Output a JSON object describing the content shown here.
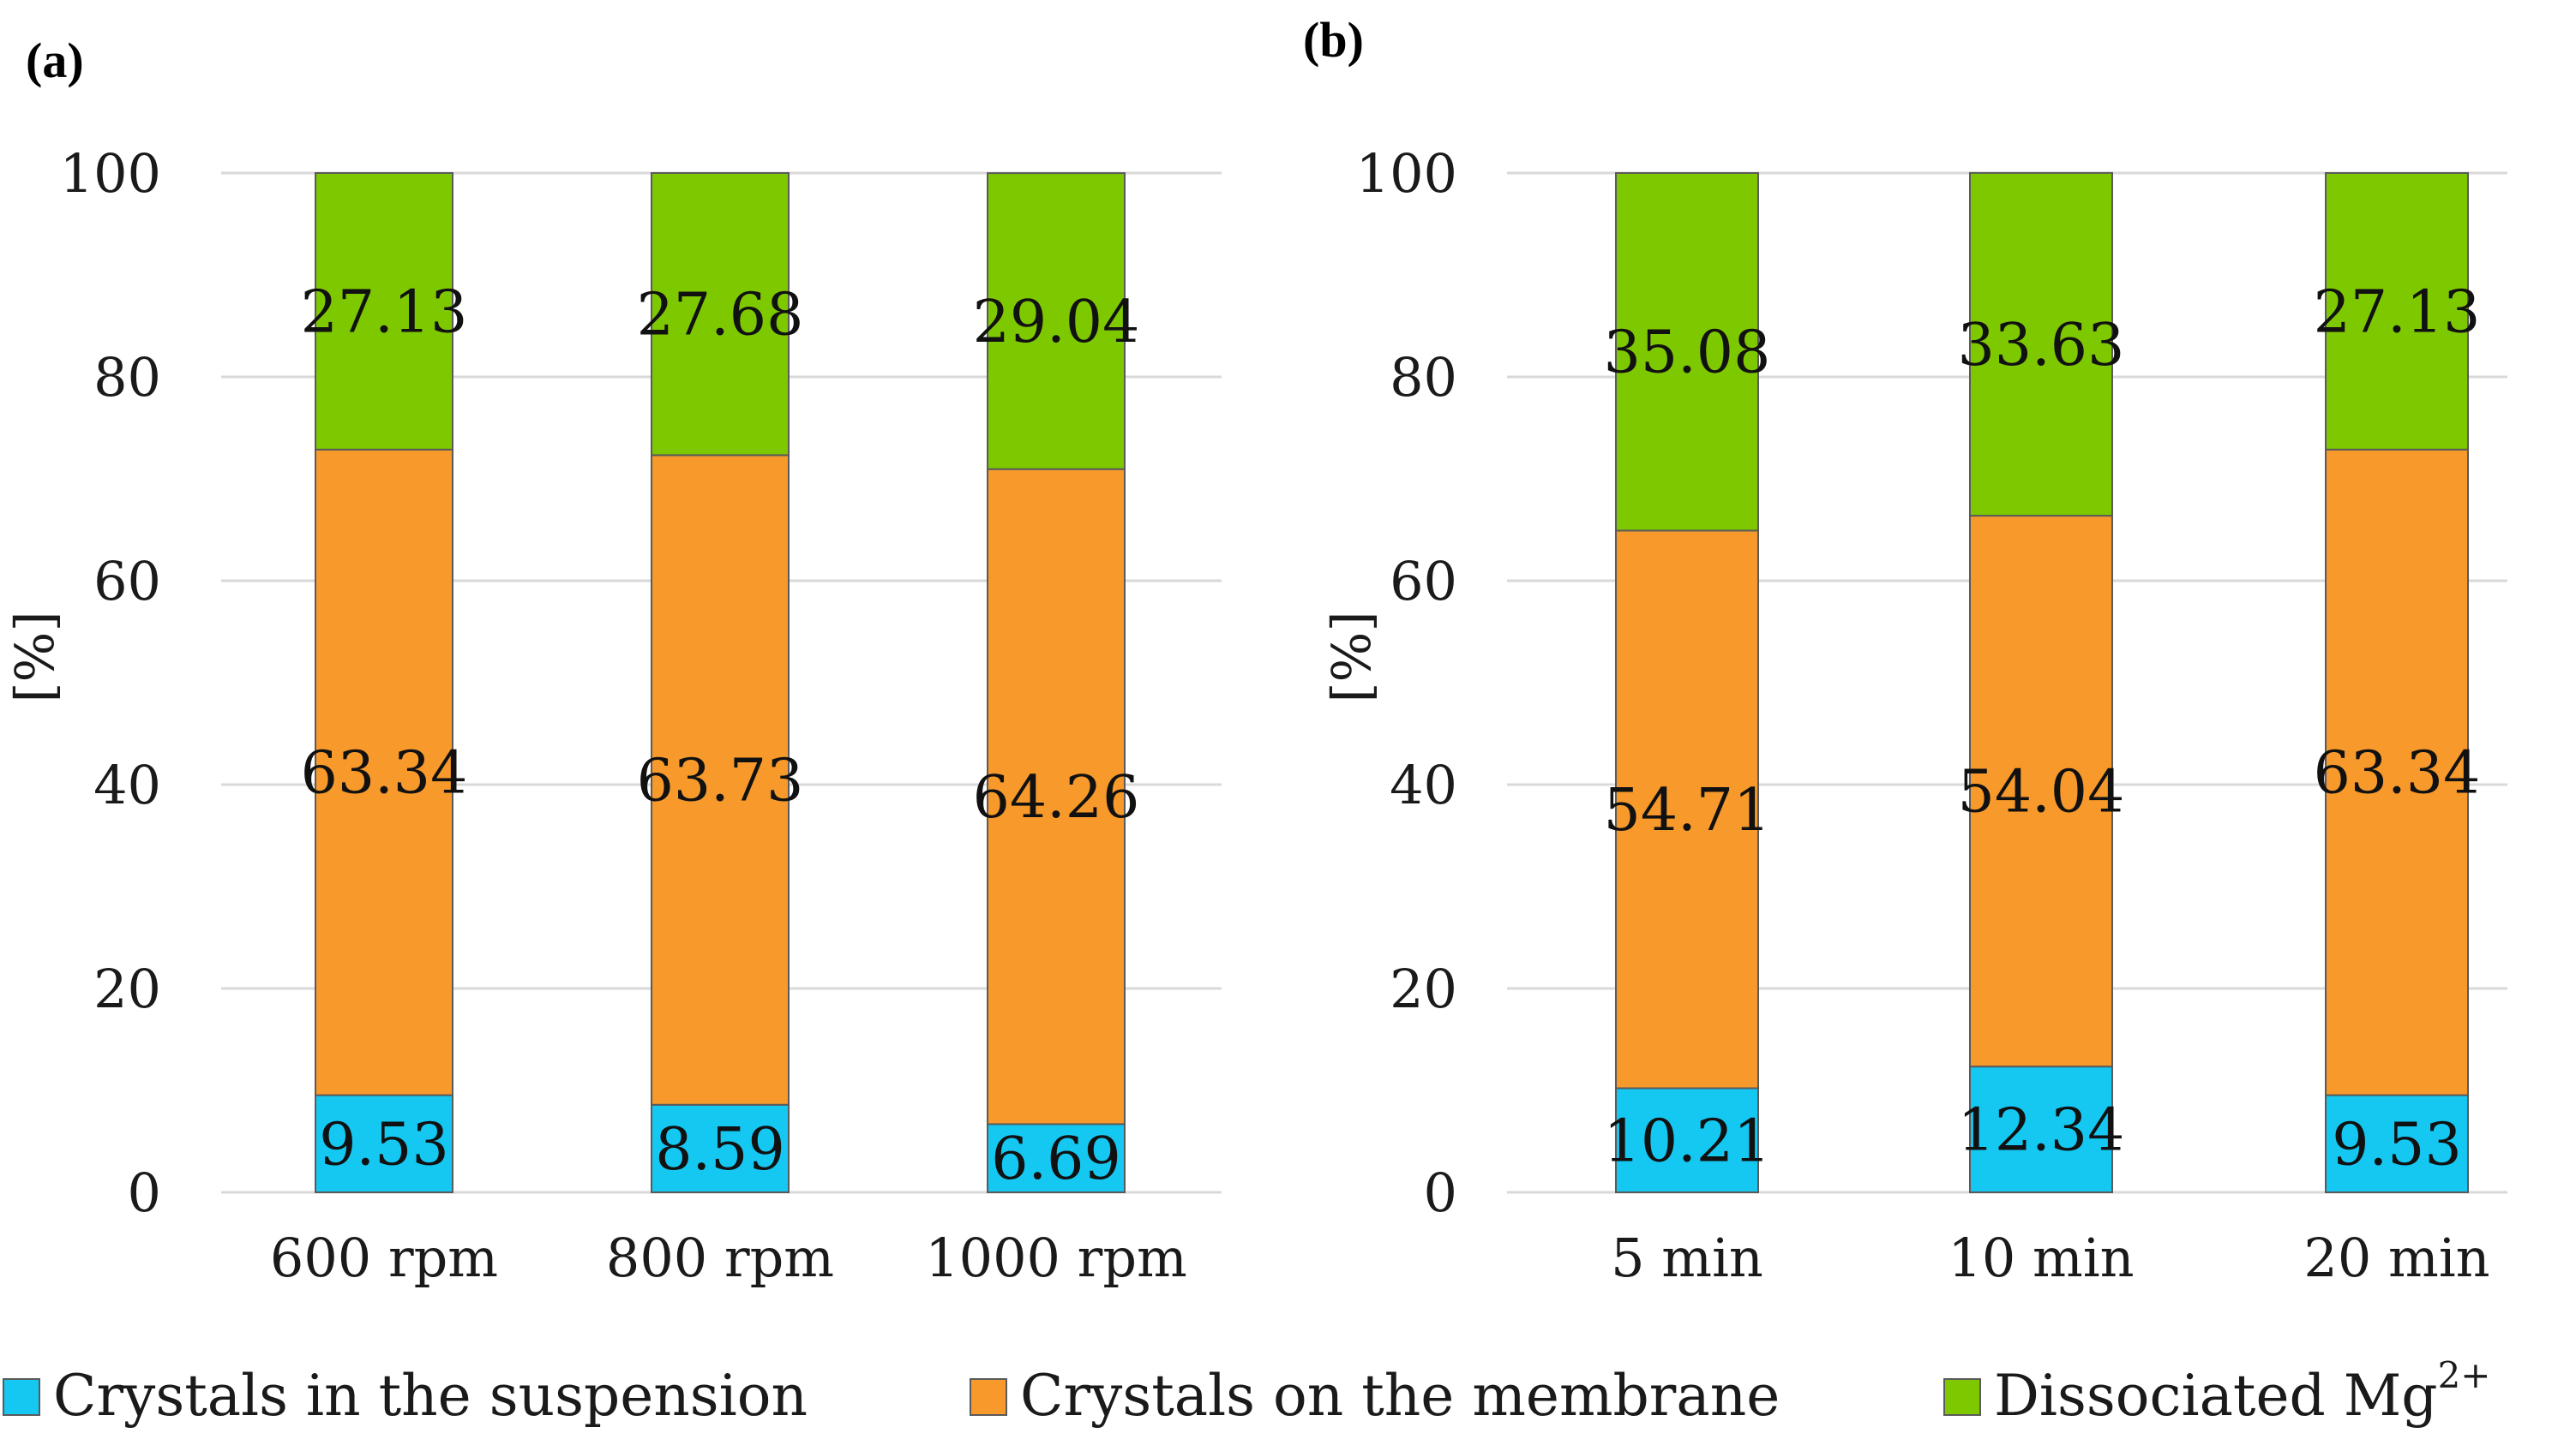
{
  "colors": {
    "suspension": "#14c8f2",
    "membrane": "#f7992b",
    "dissociated": "#7ec800"
  },
  "legend": {
    "suspension_label": "Crystals in the suspension",
    "membrane_label": "Crystals on the membrane",
    "dissociated_label": "Dissociated Mg",
    "dissociated_sup": "2+"
  },
  "chart_data": [
    {
      "panel": "(a)",
      "type": "bar",
      "stacked": true,
      "categories": [
        "600 rpm",
        "800 rpm",
        "1000 rpm"
      ],
      "series": [
        {
          "name": "Crystals in the suspension",
          "key": "suspension",
          "values": [
            9.53,
            8.59,
            6.69
          ]
        },
        {
          "name": "Crystals on the membrane",
          "key": "membrane",
          "values": [
            63.34,
            63.73,
            64.26
          ]
        },
        {
          "name": "Dissociated Mg2+",
          "key": "dissociated",
          "values": [
            27.13,
            27.68,
            29.04
          ]
        }
      ],
      "ylabel": "[%]",
      "ylim": [
        0,
        100
      ],
      "yticks": [
        "0",
        "20",
        "40",
        "60",
        "80",
        "100"
      ],
      "grid": true
    },
    {
      "panel": "(b)",
      "type": "bar",
      "stacked": true,
      "categories": [
        "5 min",
        "10 min",
        "20 min"
      ],
      "series": [
        {
          "name": "Crystals in the suspension",
          "key": "suspension",
          "values": [
            10.21,
            12.34,
            9.53
          ]
        },
        {
          "name": "Crystals on the membrane",
          "key": "membrane",
          "values": [
            54.71,
            54.04,
            63.34
          ]
        },
        {
          "name": "Dissociated Mg2+",
          "key": "dissociated",
          "values": [
            35.08,
            33.63,
            27.13
          ]
        }
      ],
      "ylabel": "[%]",
      "ylim": [
        0,
        100
      ],
      "yticks": [
        "0",
        "20",
        "40",
        "60",
        "80",
        "100"
      ],
      "grid": true
    }
  ]
}
